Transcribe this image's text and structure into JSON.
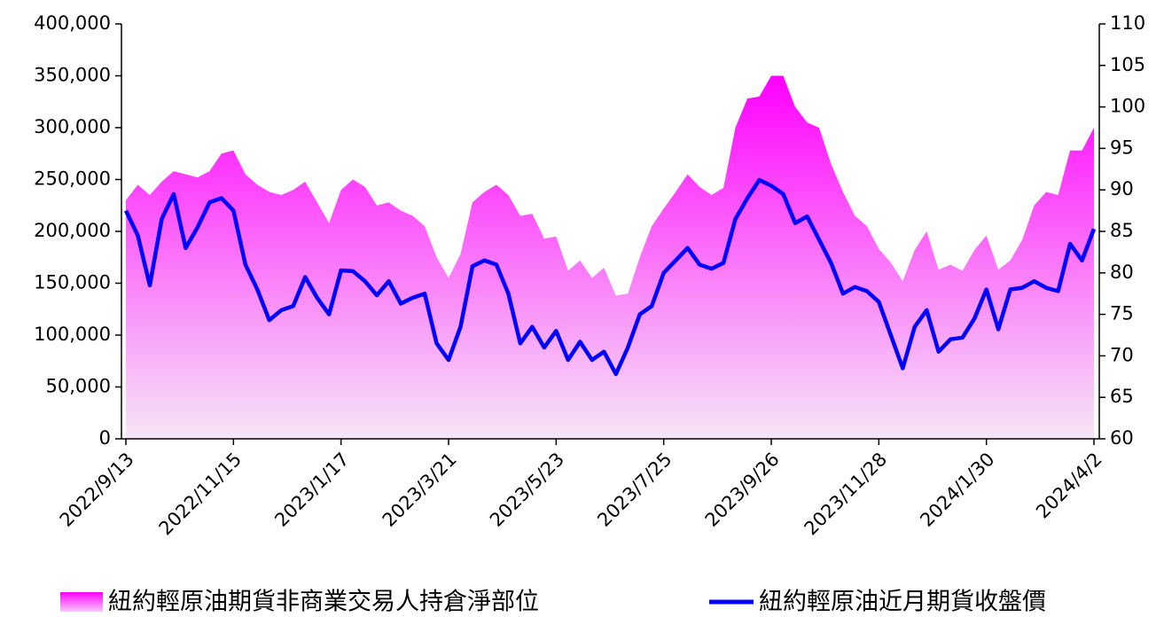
{
  "chart_data": {
    "type": "area_line",
    "categories": [
      "2022/9/13",
      null,
      null,
      null,
      null,
      null,
      null,
      null,
      null,
      "2022/11/15",
      null,
      null,
      null,
      null,
      null,
      null,
      null,
      null,
      "2023/1/17",
      null,
      null,
      null,
      null,
      null,
      null,
      null,
      null,
      "2023/3/21",
      null,
      null,
      null,
      null,
      null,
      null,
      null,
      null,
      "2023/5/23",
      null,
      null,
      null,
      null,
      null,
      null,
      null,
      null,
      "2023/7/25",
      null,
      null,
      null,
      null,
      null,
      null,
      null,
      null,
      "2023/9/26",
      null,
      null,
      null,
      null,
      null,
      null,
      null,
      null,
      "2023/11/28",
      null,
      null,
      null,
      null,
      null,
      null,
      null,
      null,
      "2024/1/30",
      null,
      null,
      null,
      null,
      null,
      null,
      null,
      null,
      "2024/4/2"
    ],
    "series": [
      {
        "name": "紐約輕原油期貨非商業交易人持倉淨部位",
        "color": "#ff00ff",
        "axis": "y",
        "values": [
          230000,
          245000,
          235000,
          248000,
          258000,
          255000,
          252000,
          258000,
          275000,
          278000,
          255000,
          245000,
          238000,
          235000,
          240000,
          248000,
          228000,
          208000,
          240000,
          250000,
          243000,
          225000,
          228000,
          220000,
          215000,
          205000,
          175000,
          155000,
          178000,
          228000,
          238000,
          245000,
          235000,
          215000,
          217000,
          193000,
          195000,
          162000,
          172000,
          155000,
          165000,
          138000,
          140000,
          175000,
          205000,
          222000,
          238000,
          255000,
          243000,
          235000,
          242000,
          300000,
          328000,
          330000,
          350000,
          350000,
          320000,
          305000,
          300000,
          265000,
          238000,
          215000,
          205000,
          183000,
          170000,
          152000,
          182000,
          200000,
          163000,
          168000,
          162000,
          182000,
          196000,
          163000,
          172000,
          192000,
          225000,
          238000,
          235000,
          278000,
          278000,
          300000
        ]
      },
      {
        "name": "紐約輕原油近月期貨收盤價",
        "color": "#0000ff",
        "axis": "y2",
        "values": [
          87.5,
          84.5,
          78.5,
          86.5,
          89.5,
          83,
          85.5,
          88.5,
          89,
          87.5,
          81,
          78,
          74.3,
          75.5,
          76,
          79.5,
          77,
          75,
          80.3,
          80.2,
          79,
          77.3,
          79,
          76.3,
          77,
          77.5,
          71.5,
          69.5,
          73.5,
          80.8,
          81.5,
          81,
          77.5,
          71.5,
          73.5,
          71,
          73,
          69.5,
          71.7,
          69.5,
          70.5,
          67.8,
          71,
          75,
          76,
          80,
          81.5,
          83,
          81,
          80.5,
          81.2,
          86.5,
          89,
          91.2,
          90.5,
          89.5,
          86,
          86.8,
          84,
          81.2,
          77.5,
          78.3,
          77.8,
          76.5,
          72.5,
          68.5,
          73.5,
          75.5,
          70.5,
          72,
          72.2,
          74.5,
          78,
          73.2,
          78,
          78.2,
          79,
          78.2,
          77.8,
          83.5,
          81.5,
          85.3
        ]
      }
    ],
    "ylim": [
      0,
      400000
    ],
    "yticks": [
      0,
      {
        "value": 50000,
        "label": "50,000"
      },
      {
        "value": 100000,
        "label": "100,000"
      },
      {
        "value": 150000,
        "label": "150,000"
      },
      {
        "value": 200000,
        "label": "200,000"
      },
      {
        "value": 250000,
        "label": "250,000"
      },
      {
        "value": 300000,
        "label": "300,000"
      },
      {
        "value": 350000,
        "label": "350,000"
      },
      {
        "value": 400000,
        "label": "400,000"
      }
    ],
    "y2lim": [
      60,
      110
    ],
    "y2ticks": [
      60,
      65,
      70,
      75,
      80,
      85,
      90,
      95,
      100,
      105,
      110
    ],
    "legend": "bottom"
  }
}
